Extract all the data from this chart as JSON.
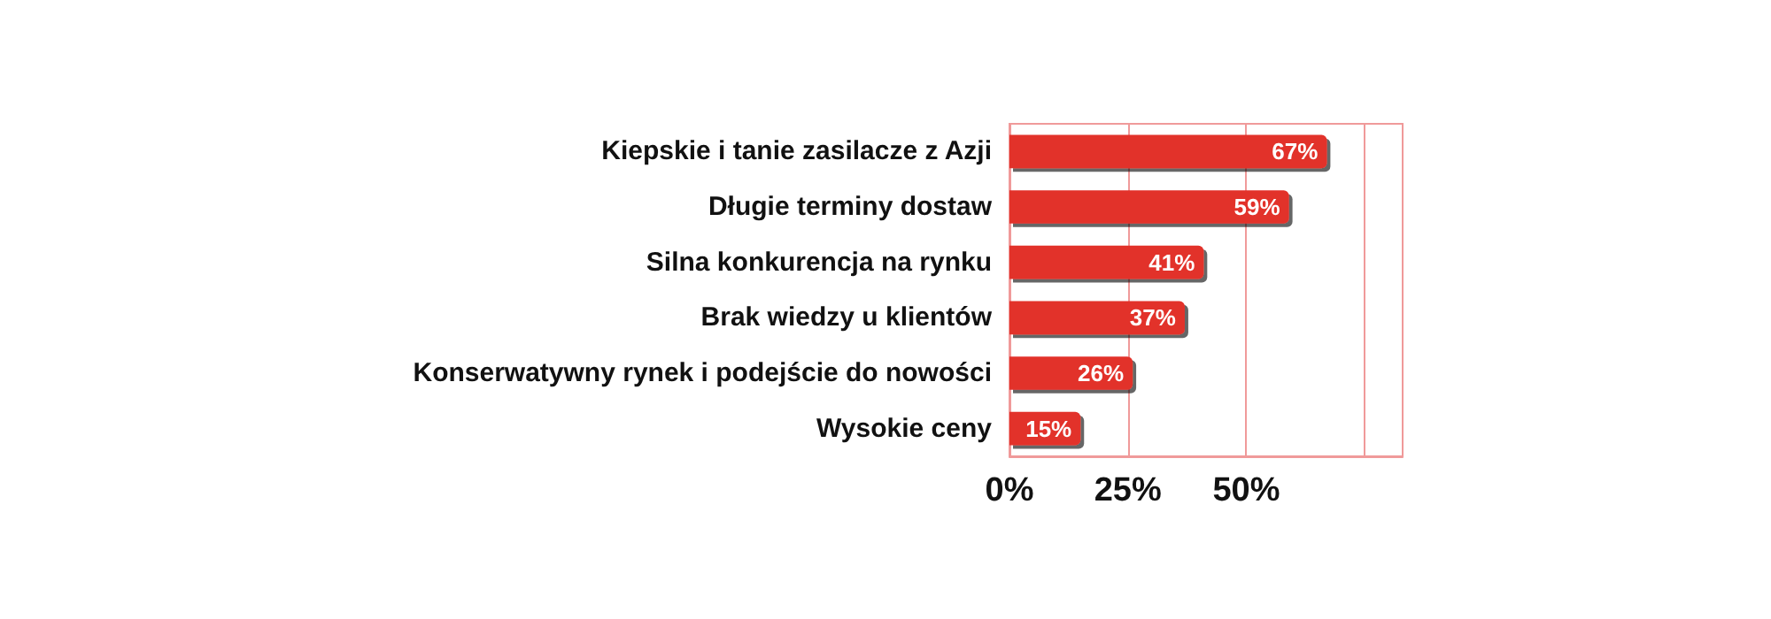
{
  "chart_data": {
    "type": "bar",
    "orientation": "horizontal",
    "categories": [
      "Kiepskie i tanie zasilacze z Azji",
      "Długie terminy dostaw",
      "Silna konkurencja na rynku",
      "Brak wiedzy u klientów",
      "Konserwatywny rynek i podejście do nowości",
      "Wysokie ceny"
    ],
    "values": [
      67,
      59,
      41,
      37,
      26,
      15
    ],
    "value_labels": [
      "67%",
      "59%",
      "41%",
      "37%",
      "26%",
      "15%"
    ],
    "color": "#e2312b",
    "xlim": [
      0,
      83
    ],
    "xticks": [
      {
        "value": 0,
        "label": "0%"
      },
      {
        "value": 25,
        "label": "25%"
      },
      {
        "value": 50,
        "label": "50%"
      },
      {
        "value": 75,
        "label": null
      }
    ],
    "grid": "x"
  }
}
